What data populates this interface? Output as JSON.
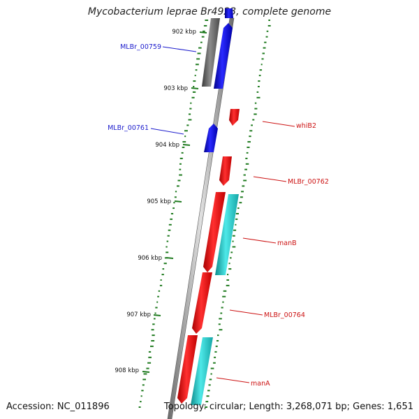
{
  "title": "Mycobacterium leprae Br4923, complete genome",
  "footer": {
    "accession": "Accession: NC_011896",
    "summary": "Topology: circular; Length: 3,268,071 bp; Genes: 1,651"
  },
  "colors": {
    "backbone": "#9a9a9a",
    "forward_gene": "#1010ee",
    "reverse_gene": "#ee1111",
    "cds_feature": "#22c8c8",
    "pseudo_gene": "#707070",
    "gc_dots": "#1e7a1e",
    "forward_label": "#1a1acc",
    "reverse_label": "#cc1111"
  },
  "ticks": [
    "902 kbp",
    "903 kbp",
    "904 kbp",
    "905 kbp",
    "906 kbp",
    "907 kbp",
    "908 kbp"
  ],
  "labels": {
    "forward": [
      "MLBr_00759",
      "MLBr_00761"
    ],
    "reverse": [
      "whiB2",
      "MLBr_00762",
      "manB",
      "MLBr_00764",
      "manA"
    ]
  }
}
